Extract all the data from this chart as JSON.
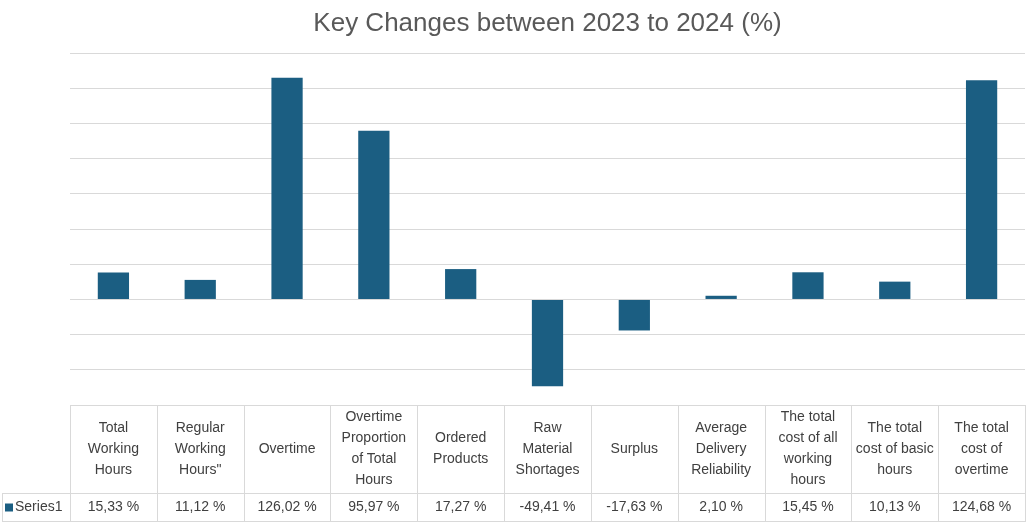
{
  "chart_data": {
    "type": "bar",
    "title": "Key Changes between 2023 to 2024 (%)",
    "categories": [
      "Total Working Hours",
      "Regular Working Hours\"",
      "Overtime",
      "Overtime Proportion of Total Hours",
      "Ordered Products",
      "Raw Material Shortages",
      "Surplus",
      "Average Delivery Reliability",
      "The total cost of all working hours",
      "The total cost of basic hours",
      "The total cost of overtime"
    ],
    "series": [
      {
        "name": "Series1",
        "color": "#1b5e82",
        "values": [
          15.33,
          11.12,
          126.02,
          95.97,
          17.27,
          -49.41,
          -17.63,
          2.1,
          15.45,
          10.13,
          124.68
        ],
        "value_labels": [
          "15,33 %",
          "11,12 %",
          "126,02 %",
          "95,97 %",
          "17,27 %",
          "-49,41 %",
          "-17,63 %",
          "2,10 %",
          "15,45 %",
          "10,13 %",
          "124,68 %"
        ]
      }
    ],
    "ylim": [
      -60,
      140
    ],
    "yticks": [
      -60,
      -40,
      -20,
      0,
      20,
      40,
      60,
      80,
      100,
      120,
      140
    ],
    "grid": "y",
    "tick_labels": "x",
    "legend": "bottom left"
  }
}
